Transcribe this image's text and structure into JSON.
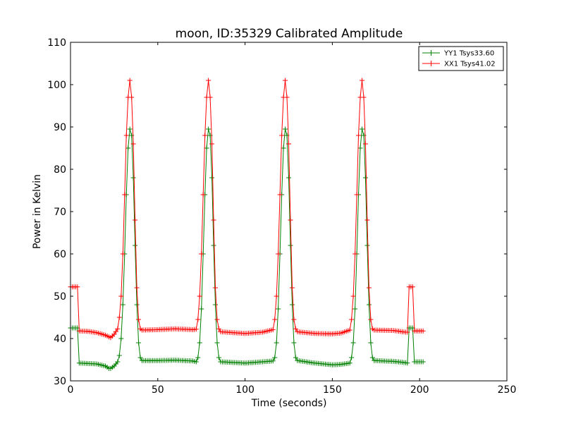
{
  "chart_data": {
    "type": "line",
    "title": "moon, ID:35329 Calibrated Amplitude",
    "xlabel": "Time (seconds)",
    "ylabel": "Power in Kelvin",
    "xlim": [
      0,
      250
    ],
    "ylim": [
      30,
      110
    ],
    "xticks": [
      0,
      50,
      100,
      150,
      200,
      250
    ],
    "yticks": [
      30,
      40,
      50,
      60,
      70,
      80,
      90,
      100,
      110
    ],
    "grid": false,
    "legend_position": "top-right",
    "marker": "plus",
    "series": [
      {
        "name": "YY1 Tsys33.60",
        "color": "#008000",
        "base": [
          [
            0,
            42.5
          ],
          [
            4,
            42.5
          ],
          [
            4.5,
            34.5
          ],
          [
            5,
            34.2
          ],
          [
            10,
            34.1
          ],
          [
            15,
            34.0
          ],
          [
            20,
            33.5
          ],
          [
            22.5,
            32.8
          ],
          [
            25,
            33.5
          ],
          [
            27,
            34.5
          ],
          [
            28,
            36
          ],
          [
            29,
            40
          ],
          [
            30,
            48
          ],
          [
            31,
            60
          ],
          [
            32,
            74
          ],
          [
            33,
            85
          ],
          [
            34,
            89.5
          ],
          [
            35,
            88
          ],
          [
            36,
            78
          ],
          [
            37,
            62
          ],
          [
            38,
            48
          ],
          [
            39,
            39
          ],
          [
            40,
            35.5
          ],
          [
            41,
            34.8
          ],
          [
            50,
            34.8
          ],
          [
            60,
            34.9
          ],
          [
            70,
            34.7
          ],
          [
            72,
            34.5
          ],
          [
            73,
            35.5
          ],
          [
            74,
            39
          ],
          [
            75,
            47
          ],
          [
            76,
            60
          ],
          [
            77,
            74
          ],
          [
            78,
            85
          ],
          [
            79,
            89.5
          ],
          [
            80,
            88
          ],
          [
            81,
            78
          ],
          [
            82,
            62
          ],
          [
            83,
            48
          ],
          [
            84,
            39
          ],
          [
            85,
            35.5
          ],
          [
            86,
            34.5
          ],
          [
            100,
            34.2
          ],
          [
            110,
            34.5
          ],
          [
            116,
            34.7
          ],
          [
            117,
            35.5
          ],
          [
            118,
            39
          ],
          [
            119,
            47
          ],
          [
            120,
            60
          ],
          [
            121,
            74
          ],
          [
            122,
            85
          ],
          [
            123,
            89.5
          ],
          [
            124,
            88
          ],
          [
            125,
            78
          ],
          [
            126,
            62
          ],
          [
            127,
            48
          ],
          [
            128,
            39
          ],
          [
            129,
            35.5
          ],
          [
            130,
            34.8
          ],
          [
            140,
            34.2
          ],
          [
            150,
            33.8
          ],
          [
            155,
            33.9
          ],
          [
            160,
            34.2
          ],
          [
            161,
            35.5
          ],
          [
            162,
            39
          ],
          [
            163,
            47
          ],
          [
            164,
            60
          ],
          [
            165,
            74
          ],
          [
            166,
            85
          ],
          [
            167,
            89.5
          ],
          [
            168,
            88
          ],
          [
            169,
            78
          ],
          [
            170,
            62
          ],
          [
            171,
            48
          ],
          [
            172,
            39
          ],
          [
            173,
            35.5
          ],
          [
            174,
            34.8
          ],
          [
            185,
            34.6
          ],
          [
            192,
            34.3
          ],
          [
            193,
            34.2
          ],
          [
            194,
            42.5
          ],
          [
            196,
            42.5
          ],
          [
            197,
            34.5
          ],
          [
            202,
            34.5
          ]
        ]
      },
      {
        "name": "XX1 Tsys41.02",
        "color": "#ff0000",
        "base": [
          [
            0,
            52.2
          ],
          [
            4,
            52.2
          ],
          [
            4.5,
            42.2
          ],
          [
            5,
            41.8
          ],
          [
            10,
            41.7
          ],
          [
            15,
            41.4
          ],
          [
            20,
            40.8
          ],
          [
            23,
            40.2
          ],
          [
            25,
            41
          ],
          [
            27,
            42.3
          ],
          [
            28,
            45
          ],
          [
            29,
            50
          ],
          [
            30,
            60
          ],
          [
            31,
            74
          ],
          [
            32,
            88
          ],
          [
            33,
            97
          ],
          [
            34,
            101
          ],
          [
            35,
            97
          ],
          [
            36,
            86
          ],
          [
            37,
            68
          ],
          [
            38,
            52
          ],
          [
            39,
            44.5
          ],
          [
            40,
            42.3
          ],
          [
            41,
            42
          ],
          [
            50,
            42.1
          ],
          [
            60,
            42.3
          ],
          [
            70,
            42.1
          ],
          [
            72,
            42.2
          ],
          [
            73,
            44.5
          ],
          [
            74,
            50
          ],
          [
            75,
            60
          ],
          [
            76,
            74
          ],
          [
            77,
            88
          ],
          [
            78,
            97
          ],
          [
            79,
            101
          ],
          [
            80,
            97
          ],
          [
            81,
            86
          ],
          [
            82,
            68
          ],
          [
            83,
            52
          ],
          [
            84,
            44.5
          ],
          [
            85,
            42.3
          ],
          [
            86,
            41.6
          ],
          [
            100,
            41.2
          ],
          [
            110,
            41.5
          ],
          [
            116,
            42.1
          ],
          [
            117,
            44.5
          ],
          [
            118,
            50
          ],
          [
            119,
            60
          ],
          [
            120,
            74
          ],
          [
            121,
            88
          ],
          [
            122,
            97
          ],
          [
            123,
            101
          ],
          [
            124,
            97
          ],
          [
            125,
            86
          ],
          [
            126,
            68
          ],
          [
            127,
            52
          ],
          [
            128,
            44.5
          ],
          [
            129,
            42.3
          ],
          [
            130,
            41.6
          ],
          [
            140,
            41.2
          ],
          [
            150,
            41.1
          ],
          [
            155,
            41.3
          ],
          [
            160,
            42
          ],
          [
            161,
            44.5
          ],
          [
            162,
            50
          ],
          [
            163,
            60
          ],
          [
            164,
            74
          ],
          [
            165,
            88
          ],
          [
            166,
            97
          ],
          [
            167,
            101
          ],
          [
            168,
            97
          ],
          [
            169,
            86
          ],
          [
            170,
            68
          ],
          [
            171,
            52
          ],
          [
            172,
            44.5
          ],
          [
            173,
            42.3
          ],
          [
            174,
            42
          ],
          [
            185,
            41.9
          ],
          [
            192,
            41.5
          ],
          [
            193,
            41.5
          ],
          [
            194,
            52.2
          ],
          [
            196,
            52.2
          ],
          [
            197,
            41.8
          ],
          [
            202,
            41.8
          ]
        ]
      }
    ]
  }
}
